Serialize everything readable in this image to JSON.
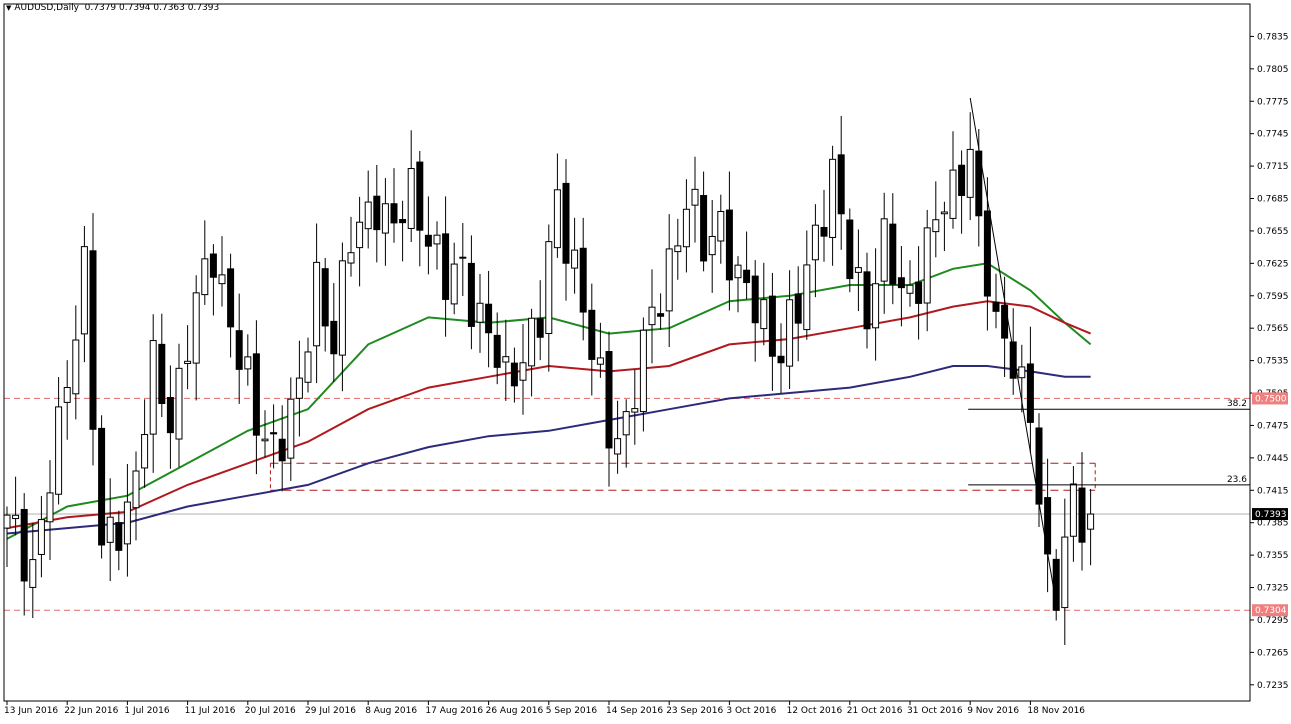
{
  "header": {
    "arrow_glyph": "▼",
    "symbol": "AUDUSD,Daily",
    "ohlc": "0.7379 0.7394 0.7363 0.7393"
  },
  "colors": {
    "bull": "#ffffff",
    "bear": "#000000",
    "ma_fast": "#1f8a1f",
    "ma_mid": "#b0191e",
    "ma_slow": "#2d2a7a",
    "level_line": "#e06a6a",
    "level_label_bg": "#f08080",
    "current_label_bg": "#000000"
  },
  "chart_data": {
    "type": "candlestick",
    "symbol": "AUDUSD",
    "timeframe": "Daily",
    "ylim": [
      0.722,
      0.7865
    ],
    "y_ticks": [
      "0.7835",
      "0.7805",
      "0.7775",
      "0.7745",
      "0.7715",
      "0.7685",
      "0.7655",
      "0.7625",
      "0.7595",
      "0.7565",
      "0.7535",
      "0.7505",
      "0.7475",
      "0.7445",
      "0.7415",
      "0.7385",
      "0.7355",
      "0.7325",
      "0.7295",
      "0.7265",
      "0.7235"
    ],
    "x_ticks": [
      {
        "label": "13 Jun 2016",
        "index": 0
      },
      {
        "label": "22 Jun 2016",
        "index": 7
      },
      {
        "label": "1 Jul 2016",
        "index": 14
      },
      {
        "label": "11 Jul 2016",
        "index": 21
      },
      {
        "label": "20 Jul 2016",
        "index": 28
      },
      {
        "label": "29 Jul 2016",
        "index": 35
      },
      {
        "label": "8 Aug 2016",
        "index": 42
      },
      {
        "label": "17 Aug 2016",
        "index": 49
      },
      {
        "label": "26 Aug 2016",
        "index": 56
      },
      {
        "label": "5 Sep 2016",
        "index": 63
      },
      {
        "label": "14 Sep 2016",
        "index": 70
      },
      {
        "label": "23 Sep 2016",
        "index": 77
      },
      {
        "label": "3 Oct 2016",
        "index": 84
      },
      {
        "label": "12 Oct 2016",
        "index": 91
      },
      {
        "label": "21 Oct 2016",
        "index": 98
      },
      {
        "label": "31 Oct 2016",
        "index": 105
      },
      {
        "label": "9 Nov 2016",
        "index": 112
      },
      {
        "label": "18 Nov 2016",
        "index": 119
      }
    ],
    "anchors": [
      [
        0,
        0.738
      ],
      [
        3,
        0.735
      ],
      [
        6,
        0.746
      ],
      [
        9,
        0.763
      ],
      [
        11,
        0.735
      ],
      [
        14,
        0.74
      ],
      [
        17,
        0.752
      ],
      [
        19,
        0.748
      ],
      [
        21,
        0.756
      ],
      [
        24,
        0.763
      ],
      [
        26,
        0.758
      ],
      [
        29,
        0.747
      ],
      [
        31,
        0.746
      ],
      [
        34,
        0.75
      ],
      [
        36,
        0.761
      ],
      [
        38,
        0.756
      ],
      [
        40,
        0.764
      ],
      [
        43,
        0.769
      ],
      [
        45,
        0.765
      ],
      [
        47,
        0.769
      ],
      [
        49,
        0.766
      ],
      [
        51,
        0.76
      ],
      [
        53,
        0.762
      ],
      [
        55,
        0.758
      ],
      [
        58,
        0.751
      ],
      [
        60,
        0.755
      ],
      [
        62,
        0.757
      ],
      [
        64,
        0.768
      ],
      [
        66,
        0.763
      ],
      [
        68,
        0.754
      ],
      [
        70,
        0.747
      ],
      [
        72,
        0.748
      ],
      [
        75,
        0.757
      ],
      [
        77,
        0.763
      ],
      [
        79,
        0.768
      ],
      [
        81,
        0.764
      ],
      [
        83,
        0.767
      ],
      [
        85,
        0.76
      ],
      [
        88,
        0.758
      ],
      [
        90,
        0.754
      ],
      [
        92,
        0.758
      ],
      [
        94,
        0.766
      ],
      [
        96,
        0.77
      ],
      [
        98,
        0.762
      ],
      [
        100,
        0.759
      ],
      [
        102,
        0.764
      ],
      [
        104,
        0.759
      ],
      [
        106,
        0.762
      ],
      [
        108,
        0.766
      ],
      [
        110,
        0.769
      ],
      [
        112,
        0.774
      ],
      [
        113,
        0.765
      ],
      [
        115,
        0.756
      ],
      [
        117,
        0.755
      ],
      [
        119,
        0.748
      ],
      [
        120,
        0.74
      ],
      [
        121,
        0.733
      ],
      [
        122,
        0.733
      ],
      [
        123,
        0.738
      ],
      [
        124,
        0.741
      ],
      [
        125,
        0.738
      ],
      [
        126,
        0.7393
      ]
    ],
    "moving_averages": [
      {
        "color_key": "ma_fast",
        "points": [
          [
            0,
            0.737
          ],
          [
            7,
            0.74
          ],
          [
            14,
            0.741
          ],
          [
            21,
            0.744
          ],
          [
            28,
            0.747
          ],
          [
            35,
            0.749
          ],
          [
            42,
            0.755
          ],
          [
            49,
            0.7575
          ],
          [
            56,
            0.757
          ],
          [
            63,
            0.7575
          ],
          [
            70,
            0.756
          ],
          [
            77,
            0.7565
          ],
          [
            84,
            0.759
          ],
          [
            91,
            0.7595
          ],
          [
            98,
            0.7605
          ],
          [
            105,
            0.7605
          ],
          [
            110,
            0.762
          ],
          [
            114,
            0.7625
          ],
          [
            119,
            0.76
          ],
          [
            123,
            0.757
          ],
          [
            126,
            0.755
          ]
        ]
      },
      {
        "color_key": "ma_mid",
        "points": [
          [
            0,
            0.738
          ],
          [
            7,
            0.739
          ],
          [
            14,
            0.7395
          ],
          [
            21,
            0.742
          ],
          [
            28,
            0.744
          ],
          [
            35,
            0.746
          ],
          [
            42,
            0.749
          ],
          [
            49,
            0.751
          ],
          [
            56,
            0.752
          ],
          [
            63,
            0.753
          ],
          [
            70,
            0.7525
          ],
          [
            77,
            0.753
          ],
          [
            84,
            0.755
          ],
          [
            91,
            0.7555
          ],
          [
            98,
            0.7565
          ],
          [
            105,
            0.7575
          ],
          [
            110,
            0.7585
          ],
          [
            114,
            0.759
          ],
          [
            119,
            0.7585
          ],
          [
            123,
            0.757
          ],
          [
            126,
            0.756
          ]
        ]
      },
      {
        "color_key": "ma_slow",
        "points": [
          [
            0,
            0.7375
          ],
          [
            7,
            0.738
          ],
          [
            14,
            0.7385
          ],
          [
            21,
            0.74
          ],
          [
            28,
            0.741
          ],
          [
            35,
            0.742
          ],
          [
            42,
            0.744
          ],
          [
            49,
            0.7455
          ],
          [
            56,
            0.7465
          ],
          [
            63,
            0.747
          ],
          [
            70,
            0.748
          ],
          [
            77,
            0.749
          ],
          [
            84,
            0.75
          ],
          [
            91,
            0.7505
          ],
          [
            98,
            0.751
          ],
          [
            105,
            0.752
          ],
          [
            110,
            0.753
          ],
          [
            114,
            0.753
          ],
          [
            119,
            0.7525
          ],
          [
            123,
            0.752
          ],
          [
            126,
            0.752
          ]
        ]
      }
    ],
    "horizontal_levels": [
      {
        "price": 0.75,
        "label": "0.7500"
      },
      {
        "price": 0.7304,
        "label": "0.7304"
      }
    ],
    "current_price": {
      "price": 0.7393,
      "label": "0.7393"
    },
    "box_zone": {
      "top": 0.744,
      "bottom": 0.7415,
      "from_index": 29,
      "to_index": 127
    },
    "fibonacci": {
      "high": {
        "index": 112,
        "price": 0.7778
      },
      "low": {
        "index": 122,
        "price": 0.731
      },
      "levels": [
        {
          "label": "38.2",
          "price": 0.749
        },
        {
          "label": "23.6",
          "price": 0.742
        }
      ]
    }
  }
}
